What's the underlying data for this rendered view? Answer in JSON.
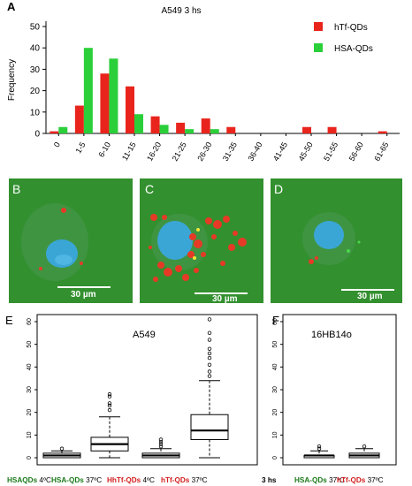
{
  "panels": {
    "A": "A",
    "B": "B",
    "C": "C",
    "D": "D",
    "E": "E",
    "F": "F"
  },
  "scale_bars": {
    "B": "30 µm",
    "C": "30 µm",
    "D": "30 µm"
  },
  "colors": {
    "htf": "#e8241c",
    "hsa": "#2bcf3a",
    "green_label": "#1a7a1a",
    "red_label": "#d42020",
    "micro_bg": "#2f8a2c",
    "nucleus": "#3aa6d6",
    "particle": "#e63a26"
  },
  "chart_data": [
    {
      "type": "bar",
      "title": "A549 3 hs",
      "ylabel": "Frequency",
      "xlabel": "",
      "ylim": [
        0,
        50
      ],
      "yticks": [
        0,
        10,
        20,
        30,
        40,
        50
      ],
      "legend_position": "top-right",
      "categories": [
        "0",
        "1-5",
        "6-10",
        "11-15",
        "16-20",
        "21-25",
        "26-30",
        "31-35",
        "36-40",
        "41-45",
        "45-50",
        "51-55",
        "56-60",
        "61-65"
      ],
      "series": [
        {
          "name": "hTf-QDs",
          "color": "#e8241c",
          "values": [
            1,
            13,
            28,
            22,
            8,
            5,
            7,
            3,
            0,
            0,
            3,
            3,
            0,
            1
          ]
        },
        {
          "name": "HSA-QDs",
          "color": "#2bcf3a",
          "values": [
            3,
            40,
            35,
            9,
            4,
            2,
            2,
            0,
            0,
            0,
            0,
            0,
            0,
            0
          ]
        }
      ]
    },
    {
      "type": "box",
      "title": "A549",
      "ylim": [
        0,
        60
      ],
      "yticks": [
        0,
        10,
        20,
        30,
        40,
        50,
        60
      ],
      "groups": [
        {
          "label": "HSAQDs",
          "temp": "4ºC",
          "color": "#1a7a1a",
          "min": 0,
          "q1": 0,
          "median": 1,
          "q3": 2,
          "max": 3,
          "outliers": [
            4
          ]
        },
        {
          "label": "HSA-QDs",
          "temp": "37ºC",
          "color": "#1a7a1a",
          "min": 0,
          "q1": 3,
          "median": 6,
          "q3": 9,
          "max": 18,
          "outliers": [
            21,
            23,
            24,
            27,
            28
          ]
        },
        {
          "label": "HhTf-QDs",
          "temp": "4ºC",
          "color": "#d42020",
          "min": 0,
          "q1": 0,
          "median": 1,
          "q3": 2,
          "max": 4,
          "outliers": [
            5,
            6,
            7,
            8
          ]
        },
        {
          "label": "hTf-QDs",
          "temp": "37ºC",
          "color": "#d42020",
          "min": 0,
          "q1": 8,
          "median": 12,
          "q3": 19,
          "max": 34,
          "outliers": [
            36,
            38,
            41,
            44,
            46,
            48,
            52,
            55,
            61
          ]
        }
      ],
      "footer": "3 hs"
    },
    {
      "type": "box",
      "title": "16HB14o",
      "ylim": [
        0,
        60
      ],
      "yticks": [
        0,
        10,
        20,
        30,
        40,
        50,
        60
      ],
      "groups": [
        {
          "label": "HSA-QDs",
          "temp": "37ºC",
          "color": "#1a7a1a",
          "min": 0,
          "q1": 0,
          "median": 1,
          "q3": 1,
          "max": 3,
          "outliers": [
            4,
            5
          ]
        },
        {
          "label": "hTf-QDs",
          "temp": "37ºC",
          "color": "#d42020",
          "min": 0,
          "q1": 0,
          "median": 1,
          "q3": 2,
          "max": 4,
          "outliers": [
            5
          ]
        }
      ]
    }
  ]
}
